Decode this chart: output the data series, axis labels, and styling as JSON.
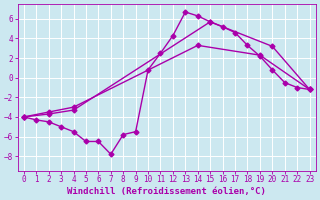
{
  "bg_color": "#cce8f0",
  "grid_color": "#ffffff",
  "line_color": "#aa00aa",
  "marker": "D",
  "markersize": 2.5,
  "linewidth": 1.0,
  "xlabel": "Windchill (Refroidissement éolien,°C)",
  "xlabel_fontsize": 6.5,
  "tick_fontsize": 5.5,
  "xlim": [
    -0.5,
    23.5
  ],
  "ylim": [
    -9.5,
    7.5
  ],
  "yticks": [
    -8,
    -6,
    -4,
    -2,
    0,
    2,
    4,
    6
  ],
  "xticks": [
    0,
    1,
    2,
    3,
    4,
    5,
    6,
    7,
    8,
    9,
    10,
    11,
    12,
    13,
    14,
    15,
    16,
    17,
    18,
    19,
    20,
    21,
    22,
    23
  ],
  "line1_x": [
    0,
    1,
    2,
    3,
    4,
    5,
    6,
    7,
    8,
    9,
    10,
    11,
    12,
    13,
    14,
    15,
    16,
    17,
    18,
    19,
    20,
    21,
    22,
    23
  ],
  "line1_y": [
    -4.0,
    -4.3,
    -4.5,
    -5.0,
    -5.5,
    -6.5,
    -6.5,
    -7.8,
    -5.8,
    -5.5,
    0.8,
    2.5,
    4.3,
    6.7,
    6.3,
    5.7,
    5.2,
    4.6,
    3.3,
    2.2,
    0.8,
    -0.5,
    -1.0,
    -1.2
  ],
  "line2_x": [
    0,
    2,
    4,
    14,
    19,
    23
  ],
  "line2_y": [
    -4.0,
    -3.5,
    -3.0,
    3.3,
    2.3,
    -1.2
  ],
  "line3_x": [
    0,
    2,
    4,
    15,
    20,
    23
  ],
  "line3_y": [
    -4.0,
    -3.7,
    -3.3,
    5.7,
    3.2,
    -1.2
  ]
}
